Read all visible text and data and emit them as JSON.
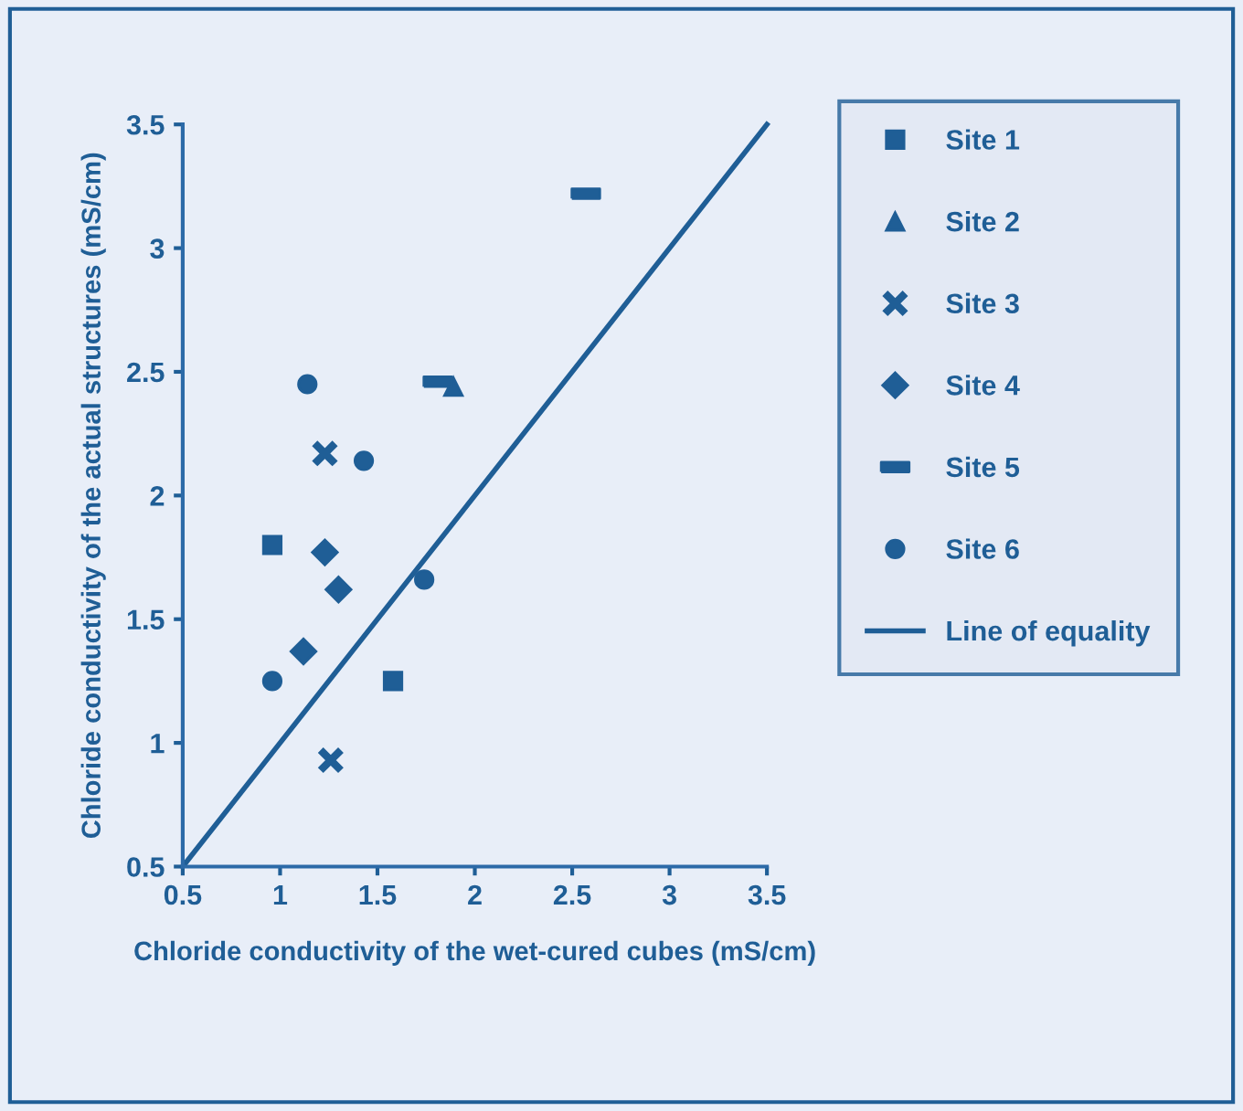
{
  "chart_data": {
    "type": "scatter",
    "xlabel": "Chloride conductivity of the wet-cured cubes (mS/cm)",
    "ylabel": "Chloride conductivity of the actual structures (mS/cm)",
    "xlim": [
      0.5,
      3.5
    ],
    "ylim": [
      0.5,
      3.5
    ],
    "xticks": [
      0.5,
      1,
      1.5,
      2,
      2.5,
      3,
      3.5
    ],
    "yticks": [
      0.5,
      1,
      1.5,
      2,
      2.5,
      3,
      3.5
    ],
    "grid": false,
    "legend": "right",
    "series": [
      {
        "name": "Site 1",
        "color": "#1f5e96",
        "marker": "square",
        "x": [
          0.96,
          1.58
        ],
        "values": [
          1.8,
          1.25
        ]
      },
      {
        "name": "Site 2",
        "color": "#1f5e96",
        "marker": "triangle",
        "x": [
          1.89
        ],
        "values": [
          2.44
        ]
      },
      {
        "name": "Site 3",
        "color": "#1f5e96",
        "marker": "cross",
        "x": [
          1.23,
          1.26
        ],
        "values": [
          2.17,
          0.93
        ]
      },
      {
        "name": "Site 4",
        "color": "#1f5e96",
        "marker": "diamond",
        "x": [
          1.23,
          1.3,
          1.12
        ],
        "values": [
          1.77,
          1.62,
          1.37
        ]
      },
      {
        "name": "Site 5",
        "color": "#1f5e96",
        "x": [
          2.57,
          1.81
        ],
        "values": [
          3.22,
          2.46
        ]
      },
      {
        "name": "Site 6",
        "color": "#1f5e96",
        "marker": "circle",
        "x": [
          1.14,
          1.43,
          1.74,
          0.96
        ],
        "values": [
          2.45,
          2.14,
          1.66,
          1.25
        ]
      },
      {
        "name": "Line of equality",
        "type": "line",
        "color": "#1f5e96",
        "marker": "none",
        "line_style": "solid",
        "x": [
          0.5,
          3.5
        ],
        "values": [
          0.5,
          3.5
        ]
      }
    ]
  }
}
